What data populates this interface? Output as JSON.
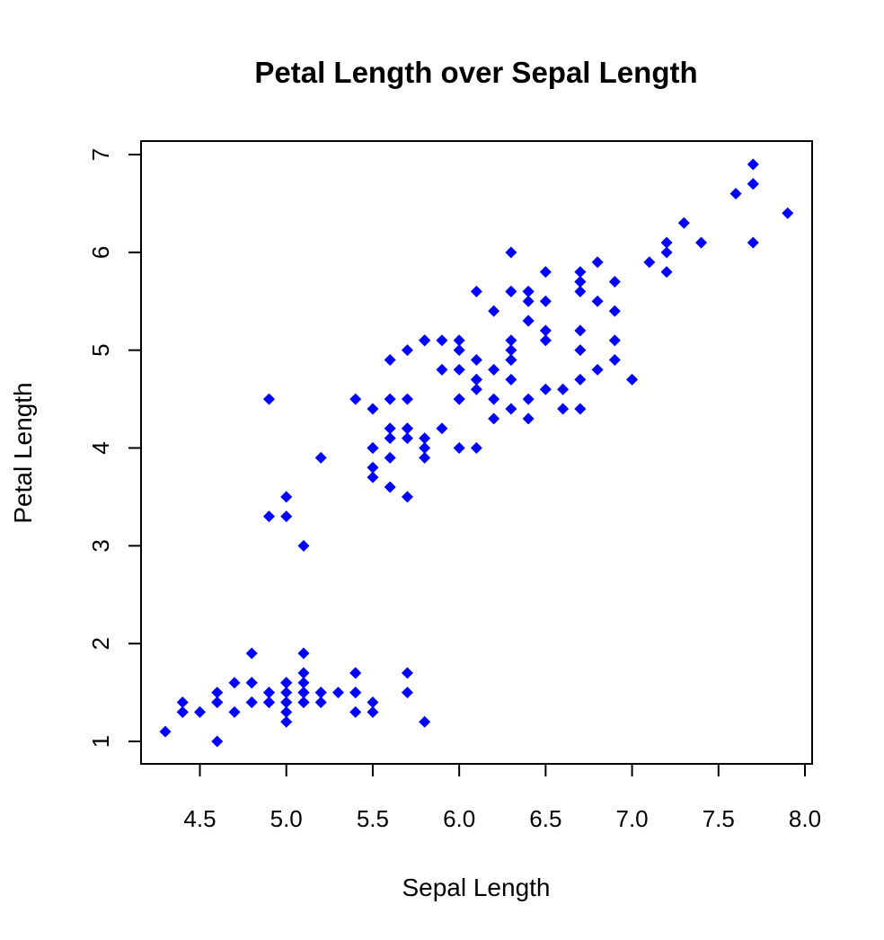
{
  "chart_data": {
    "type": "scatter",
    "title": "Petal Length over Sepal Length",
    "xlabel": "Sepal Length",
    "ylabel": "Petal Length",
    "xlim": [
      4.3,
      7.9
    ],
    "ylim": [
      1.0,
      6.9
    ],
    "xticks": [
      "4.5",
      "5.0",
      "5.5",
      "6.0",
      "6.5",
      "7.0",
      "7.5",
      "8.0"
    ],
    "yticks": [
      "1",
      "2",
      "3",
      "4",
      "5",
      "6",
      "7"
    ],
    "marker": "diamond",
    "color": "#0000ff",
    "grid": false,
    "points": [
      [
        5.1,
        1.4
      ],
      [
        4.9,
        1.4
      ],
      [
        4.7,
        1.3
      ],
      [
        4.6,
        1.5
      ],
      [
        5.0,
        1.4
      ],
      [
        5.4,
        1.7
      ],
      [
        4.6,
        1.4
      ],
      [
        5.0,
        1.5
      ],
      [
        4.4,
        1.4
      ],
      [
        4.9,
        1.5
      ],
      [
        5.4,
        1.5
      ],
      [
        4.8,
        1.6
      ],
      [
        4.8,
        1.4
      ],
      [
        4.3,
        1.1
      ],
      [
        5.8,
        1.2
      ],
      [
        5.7,
        1.5
      ],
      [
        5.4,
        1.3
      ],
      [
        5.1,
        1.4
      ],
      [
        5.7,
        1.7
      ],
      [
        5.1,
        1.5
      ],
      [
        5.4,
        1.7
      ],
      [
        5.1,
        1.5
      ],
      [
        4.6,
        1.0
      ],
      [
        5.1,
        1.7
      ],
      [
        4.8,
        1.9
      ],
      [
        5.0,
        1.6
      ],
      [
        5.0,
        1.6
      ],
      [
        5.2,
        1.5
      ],
      [
        5.2,
        1.4
      ],
      [
        4.7,
        1.6
      ],
      [
        4.8,
        1.6
      ],
      [
        5.4,
        1.5
      ],
      [
        5.2,
        1.5
      ],
      [
        5.5,
        1.4
      ],
      [
        4.9,
        1.5
      ],
      [
        5.0,
        1.2
      ],
      [
        5.5,
        1.3
      ],
      [
        4.9,
        1.4
      ],
      [
        4.4,
        1.3
      ],
      [
        5.1,
        1.5
      ],
      [
        5.0,
        1.3
      ],
      [
        4.5,
        1.3
      ],
      [
        4.4,
        1.3
      ],
      [
        5.0,
        1.6
      ],
      [
        5.1,
        1.9
      ],
      [
        4.8,
        1.4
      ],
      [
        5.1,
        1.6
      ],
      [
        4.6,
        1.4
      ],
      [
        5.3,
        1.5
      ],
      [
        5.0,
        1.4
      ],
      [
        7.0,
        4.7
      ],
      [
        6.4,
        4.5
      ],
      [
        6.9,
        4.9
      ],
      [
        5.5,
        4.0
      ],
      [
        6.5,
        4.6
      ],
      [
        5.7,
        4.5
      ],
      [
        6.3,
        4.7
      ],
      [
        4.9,
        3.3
      ],
      [
        6.6,
        4.6
      ],
      [
        5.2,
        3.9
      ],
      [
        5.0,
        3.5
      ],
      [
        5.9,
        4.2
      ],
      [
        6.0,
        4.0
      ],
      [
        6.1,
        4.7
      ],
      [
        5.6,
        3.6
      ],
      [
        6.7,
        4.4
      ],
      [
        5.6,
        4.5
      ],
      [
        5.8,
        4.1
      ],
      [
        6.2,
        4.5
      ],
      [
        5.6,
        3.9
      ],
      [
        5.9,
        4.8
      ],
      [
        6.1,
        4.0
      ],
      [
        6.3,
        4.9
      ],
      [
        6.1,
        4.7
      ],
      [
        6.4,
        4.3
      ],
      [
        6.6,
        4.4
      ],
      [
        6.8,
        4.8
      ],
      [
        6.7,
        5.0
      ],
      [
        6.0,
        4.5
      ],
      [
        5.7,
        3.5
      ],
      [
        5.5,
        3.8
      ],
      [
        5.5,
        3.7
      ],
      [
        5.8,
        3.9
      ],
      [
        6.0,
        5.1
      ],
      [
        5.4,
        4.5
      ],
      [
        6.0,
        4.5
      ],
      [
        6.7,
        4.7
      ],
      [
        6.3,
        4.4
      ],
      [
        5.6,
        4.1
      ],
      [
        5.5,
        4.0
      ],
      [
        5.5,
        4.4
      ],
      [
        6.1,
        4.6
      ],
      [
        5.8,
        4.0
      ],
      [
        5.0,
        3.3
      ],
      [
        5.6,
        4.2
      ],
      [
        5.7,
        4.2
      ],
      [
        5.7,
        4.2
      ],
      [
        6.2,
        4.3
      ],
      [
        5.1,
        3.0
      ],
      [
        5.7,
        4.1
      ],
      [
        6.3,
        6.0
      ],
      [
        5.8,
        5.1
      ],
      [
        7.1,
        5.9
      ],
      [
        6.3,
        5.6
      ],
      [
        6.5,
        5.8
      ],
      [
        7.6,
        6.6
      ],
      [
        4.9,
        4.5
      ],
      [
        7.3,
        6.3
      ],
      [
        6.7,
        5.8
      ],
      [
        7.2,
        6.1
      ],
      [
        6.5,
        5.1
      ],
      [
        6.4,
        5.3
      ],
      [
        6.8,
        5.5
      ],
      [
        5.7,
        5.0
      ],
      [
        5.8,
        5.1
      ],
      [
        6.4,
        5.3
      ],
      [
        6.5,
        5.5
      ],
      [
        7.7,
        6.7
      ],
      [
        7.7,
        6.9
      ],
      [
        6.0,
        5.0
      ],
      [
        6.9,
        5.7
      ],
      [
        5.6,
        4.9
      ],
      [
        7.7,
        6.7
      ],
      [
        6.3,
        4.9
      ],
      [
        6.7,
        5.7
      ],
      [
        7.2,
        6.0
      ],
      [
        6.2,
        4.8
      ],
      [
        6.1,
        4.9
      ],
      [
        6.4,
        5.6
      ],
      [
        7.2,
        5.8
      ],
      [
        7.4,
        6.1
      ],
      [
        7.9,
        6.4
      ],
      [
        6.4,
        5.6
      ],
      [
        6.3,
        5.1
      ],
      [
        6.1,
        5.6
      ],
      [
        7.7,
        6.1
      ],
      [
        6.3,
        5.6
      ],
      [
        6.4,
        5.5
      ],
      [
        6.0,
        4.8
      ],
      [
        6.9,
        5.4
      ],
      [
        6.7,
        5.6
      ],
      [
        6.9,
        5.1
      ],
      [
        5.8,
        5.1
      ],
      [
        6.8,
        5.9
      ],
      [
        6.7,
        5.7
      ],
      [
        6.7,
        5.2
      ],
      [
        6.3,
        5.0
      ],
      [
        6.5,
        5.2
      ],
      [
        6.2,
        5.4
      ],
      [
        5.9,
        5.1
      ]
    ]
  }
}
